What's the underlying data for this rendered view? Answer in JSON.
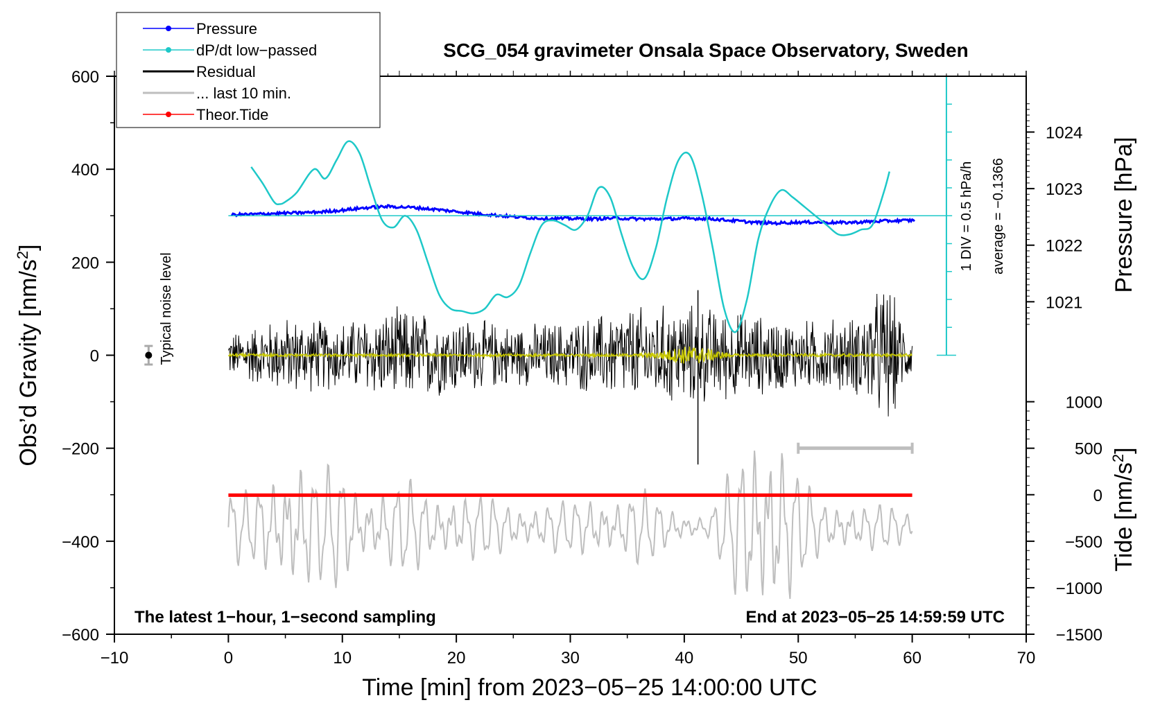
{
  "chart_data": {
    "type": "line",
    "title": "SCG_054 gravimeter Onsala Space Observatory, Sweden",
    "xlabel": "Time [min] from 2023−05−25 14:00:00 UTC",
    "ylabel_left": "Obs’d Gravity [nm/s",
    "ylabel_left_sup": "2",
    "ylabel_left_close": "]",
    "ylabel_right_pressure": "Pressure [hPa]",
    "ylabel_right_tide": "Tide [nm/s",
    "ylabel_right_tide_sup": "2",
    "ylabel_right_tide_close": "]",
    "xlim": [
      -10,
      70
    ],
    "ylim": [
      -600,
      600
    ],
    "x_ticks": [
      -10,
      0,
      10,
      20,
      30,
      40,
      50,
      60,
      70
    ],
    "x_tick_labels": [
      "−10",
      "0",
      "10",
      "20",
      "30",
      "40",
      "50",
      "60",
      "70"
    ],
    "y_ticks": [
      -600,
      -400,
      -200,
      0,
      200,
      400,
      600
    ],
    "y_tick_labels": [
      "−600",
      "−400",
      "−200",
      "0",
      "200",
      "400",
      "600"
    ],
    "pressure_ticks": [
      1021,
      1022,
      1023,
      1024
    ],
    "pressure_tick_labels": [
      "1021",
      "1022",
      "1023",
      "1024"
    ],
    "pressure_gravity_map": {
      "1021": 115,
      "1022": 240,
      "1023": 360,
      "1024": 480
    },
    "tide_ticks": [
      -1500,
      -1000,
      -500,
      0,
      500,
      1000
    ],
    "tide_tick_labels": [
      "−1500",
      "−1000",
      "−500",
      "0",
      "500",
      "1000"
    ],
    "tide_ylim": [
      -1500,
      1000
    ],
    "legend": [
      {
        "label": "Pressure",
        "color": "#0000ff",
        "marker": true
      },
      {
        "label": "dP/dt low−passed",
        "color": "#1ec8c8",
        "marker": true
      },
      {
        "label": "Residual",
        "color": "#000000",
        "marker": false
      },
      {
        "label": "... last 10 min.",
        "color": "#bebebe",
        "marker": false
      },
      {
        "label": "Theor.Tide",
        "color": "#ff0000",
        "marker": true
      }
    ],
    "annotations": {
      "bottom_left": "The latest 1−hour, 1−second sampling",
      "bottom_right": "End at 2023−05−25 14:59:59 UTC",
      "noise_label": "Typical noise level",
      "div_label": "1 DIV = 0.5 hPa/h",
      "average_label": "average = −0.1366"
    },
    "noise_marker": {
      "x": -7,
      "y": 0,
      "err": 20
    },
    "last10_bar": {
      "x_start": 50,
      "x_end": 60,
      "y": -200
    },
    "dpdt_scale_axis": {
      "x": 63,
      "y_top": 600,
      "y_bottom": 0,
      "baseline": 300
    },
    "series": [
      {
        "name": "Pressure",
        "color": "#0000ff",
        "x": [
          0,
          2,
          4,
          6,
          8,
          10,
          12,
          14,
          16,
          18,
          20,
          22,
          24,
          26,
          28,
          30,
          32,
          34,
          36,
          38,
          40,
          42,
          44,
          46,
          48,
          50,
          52,
          54,
          56,
          58,
          60
        ],
        "y": [
          302,
          303,
          305,
          306,
          308,
          312,
          317,
          320,
          318,
          314,
          309,
          304,
          300,
          296,
          294,
          294,
          293,
          295,
          293,
          293,
          294,
          294,
          290,
          286,
          284,
          286,
          286,
          285,
          287,
          289,
          290
        ]
      },
      {
        "name": "dP/dt low−passed",
        "color": "#1ec8c8",
        "x": [
          2,
          3,
          4,
          4.5,
          5,
          6,
          7.5,
          8.5,
          9.5,
          10.5,
          11.5,
          12.5,
          13.5,
          14.5,
          15.5,
          16.5,
          17.5,
          18.5,
          19.5,
          20.5,
          21.5,
          22.5,
          23.5,
          24.5,
          25.5,
          26.5,
          27.5,
          28.5,
          29.5,
          30.5,
          31.5,
          32.5,
          33.5,
          34.5,
          35.5,
          36.5,
          37.5,
          38.5,
          39.5,
          40.5,
          41.5,
          42.5,
          43.5,
          44.5,
          45.5,
          46.5,
          47.5,
          48.5,
          49.5,
          50.5,
          51.5,
          52.5,
          53.5,
          54.5,
          55.5,
          56.5,
          57.5,
          58
        ],
        "y": [
          405,
          370,
          330,
          325,
          330,
          350,
          400,
          380,
          420,
          460,
          435,
          360,
          290,
          275,
          300,
          270,
          200,
          130,
          100,
          95,
          90,
          100,
          130,
          125,
          150,
          220,
          280,
          290,
          280,
          270,
          300,
          360,
          340,
          260,
          190,
          165,
          230,
          340,
          420,
          430,
          350,
          230,
          100,
          50,
          120,
          250,
          320,
          355,
          340,
          320,
          300,
          280,
          260,
          260,
          270,
          280,
          350,
          395
        ]
      },
      {
        "name": "Residual",
        "color": "#000000",
        "x": [
          0,
          5,
          10,
          15,
          20,
          25,
          30,
          35,
          40,
          45,
          50,
          55,
          57,
          58,
          59,
          60
        ],
        "amplitude": [
          50,
          90,
          80,
          110,
          90,
          70,
          80,
          110,
          120,
          100,
          80,
          90,
          150,
          170,
          90,
          40
        ]
      },
      {
        "name": "... last 10 min.",
        "color": "#bebebe",
        "x": [
          0,
          2,
          4,
          6,
          8,
          10,
          12,
          14,
          16,
          18,
          20,
          22,
          24,
          26,
          28,
          30,
          32,
          34,
          36,
          38,
          40,
          42,
          44,
          46,
          48,
          50,
          52,
          54,
          56,
          58,
          60
        ],
        "amplitude": [
          160,
          120,
          220,
          330,
          200,
          240,
          150,
          160,
          170,
          130,
          150,
          120,
          100,
          90,
          100,
          90,
          130,
          120,
          140,
          100,
          60,
          40,
          200,
          420,
          430,
          200,
          100,
          110,
          90,
          80,
          60
        ],
        "center_gravity": -370
      },
      {
        "name": "Theor.Tide",
        "color": "#ff0000",
        "x": [
          0,
          10,
          20,
          30,
          40,
          50,
          60
        ],
        "y_tide": [
          -5,
          -5,
          -5,
          -5,
          -5,
          -5,
          -5
        ]
      }
    ]
  }
}
